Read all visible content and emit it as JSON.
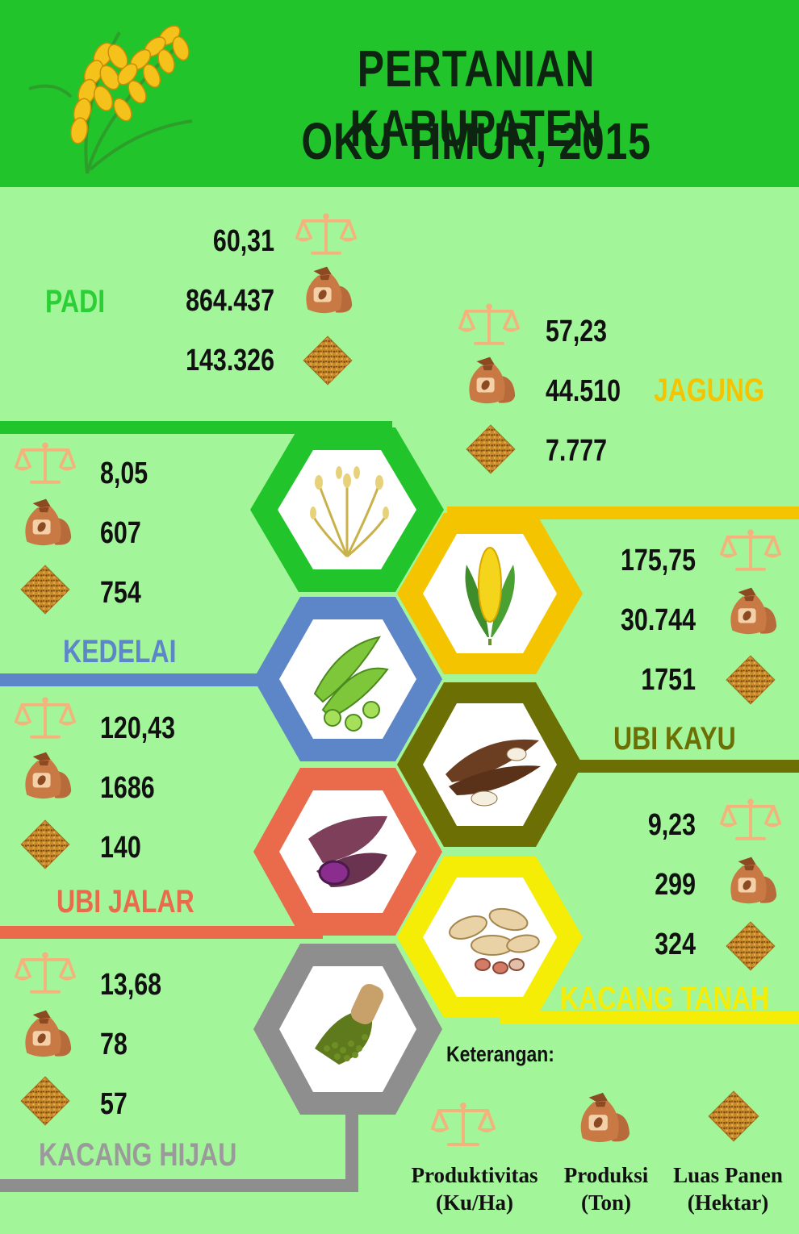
{
  "title": {
    "line1": "PERTANIAN KABUPATEN",
    "line2": "OKU TIMUR, 2015"
  },
  "colors": {
    "background": "#a3f59a",
    "header": "#22c42c",
    "padi": "#22c42c",
    "jagung": "#f5c400",
    "kedelai": "#5d86c8",
    "ubi_kayu": "#6b6f04",
    "ubi_jalar": "#ea6a4c",
    "kacang_tanah": "#f5ed06",
    "kacang_hijau": "#8e8e8e"
  },
  "crops": {
    "padi": {
      "name": "PADI",
      "productivity": "60,31",
      "production": "864.437",
      "area": "143.326"
    },
    "jagung": {
      "name": "JAGUNG",
      "productivity": "57,23",
      "production": "44.510",
      "area": "7.777"
    },
    "kedelai": {
      "name": "KEDELAI",
      "productivity": "8,05",
      "production": "607",
      "area": "754"
    },
    "ubi_kayu": {
      "name": "UBI KAYU",
      "productivity": "175,75",
      "production": "30.744",
      "area": "1751"
    },
    "ubi_jalar": {
      "name": "UBI JALAR",
      "productivity": "120,43",
      "production": "1686",
      "area": "140"
    },
    "kacang_tanah": {
      "name": "KACANG TANAH",
      "productivity": "9,23",
      "production": "299",
      "area": "324"
    },
    "kacang_hijau": {
      "name": "KACANG HIJAU",
      "productivity": "13,68",
      "production": "78",
      "area": "57"
    }
  },
  "legend": {
    "title": "Keterangan:",
    "productivity": {
      "line1": "Produktivitas",
      "line2": "(Ku/Ha)",
      "icon": "scale-icon"
    },
    "production": {
      "line1": "Produksi",
      "line2": "(Ton)",
      "icon": "sack-icon"
    },
    "area": {
      "line1": "Luas Panen",
      "line2": "(Hektar)",
      "icon": "field-icon"
    }
  }
}
